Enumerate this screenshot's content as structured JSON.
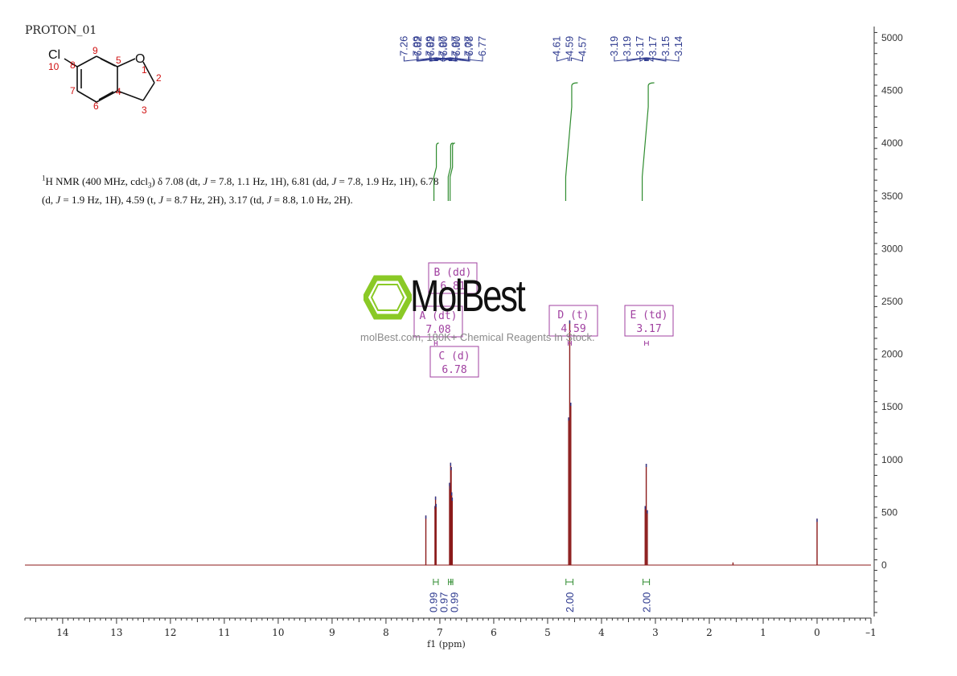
{
  "header": {
    "title": "PROTON_01"
  },
  "molecule": {
    "atoms": {
      "cl": "Cl",
      "o": "O"
    },
    "locants": [
      "10",
      "8",
      "9",
      "5",
      "1",
      "2",
      "7",
      "6",
      "4",
      "3"
    ]
  },
  "description": {
    "line1_parts": [
      "1",
      "H NMR (400 MHz, cdcl",
      "3",
      ") δ 7.08 (dt, ",
      "J",
      " = 7.8, 1.1 Hz, 1H), 6.81 (dd, ",
      "J",
      " = 7.8, 1.9 Hz, 1H), 6.78"
    ],
    "line2_parts": [
      "(d, ",
      "J",
      " = 1.9 Hz, 1H), 4.59 (t, ",
      "J",
      " = 8.7 Hz, 2H), 3.17 (td, ",
      "J",
      " = 8.8, 1.0 Hz, 2H)."
    ]
  },
  "watermark": {
    "brand": "MolBest",
    "tagline": "molBest.com, 180K+ Chemical Reagents In Stock."
  },
  "chart_data": {
    "type": "line",
    "xlabel": "f1 (ppm)",
    "xlim": [
      14.7,
      -1
    ],
    "x_reversed": true,
    "x_ticks": [
      14,
      13,
      12,
      11,
      10,
      9,
      8,
      7,
      6,
      5,
      4,
      3,
      2,
      1,
      0,
      -1
    ],
    "x_tick_labels": [
      "14",
      "13",
      "12",
      "11",
      "10",
      "9",
      "8",
      "7",
      "6",
      "5",
      "4",
      "3",
      "2",
      "1",
      "0",
      "–1"
    ],
    "ylim": [
      -500,
      5100
    ],
    "y_ticks": [
      0,
      500,
      1000,
      1500,
      2000,
      2500,
      3000,
      3500,
      4000,
      4500,
      5000
    ],
    "y_tick_labels": [
      "0",
      "500",
      "1000",
      "1500",
      "2000",
      "2500",
      "3000",
      "3500",
      "4000",
      "4500",
      "5000"
    ],
    "y_axis_side": "right",
    "grid": false,
    "colors": {
      "spectrum": "#8b1a1a",
      "peak_labels": "#2e3a8f",
      "integral": "#2e8b2e",
      "multiplet": "#a040a0",
      "axis": "#333333"
    },
    "peaks": [
      {
        "ppm": 7.26,
        "height": 470
      },
      {
        "ppm": 7.09,
        "height": 560
      },
      {
        "ppm": 7.08,
        "height": 650
      },
      {
        "ppm": 7.07,
        "height": 580
      },
      {
        "ppm": 6.82,
        "height": 780
      },
      {
        "ppm": 6.81,
        "height": 750
      },
      {
        "ppm": 6.8,
        "height": 970
      },
      {
        "ppm": 6.79,
        "height": 930
      },
      {
        "ppm": 6.78,
        "height": 690
      },
      {
        "ppm": 6.77,
        "height": 640
      },
      {
        "ppm": 4.61,
        "height": 1400
      },
      {
        "ppm": 4.59,
        "height": 2320
      },
      {
        "ppm": 4.57,
        "height": 1540
      },
      {
        "ppm": 3.19,
        "height": 560
      },
      {
        "ppm": 3.17,
        "height": 960
      },
      {
        "ppm": 3.15,
        "height": 520
      },
      {
        "ppm": 1.56,
        "height": 25
      },
      {
        "ppm": 0.0,
        "height": 440
      }
    ],
    "peak_labels": {
      "groups": [
        {
          "positions": [
            7.095,
            7.04
          ],
          "labels": [
            "7.26",
            "7.09",
            "7.09",
            "7.07",
            "7.07",
            "7.07"
          ]
        },
        {
          "positions": [
            6.83,
            6.78
          ],
          "labels": [
            "6.82",
            "6.82",
            "6.80",
            "6.80",
            "6.78",
            "6.77"
          ]
        },
        {
          "positions": [
            4.62,
            4.56
          ],
          "labels": [
            "4.61",
            "4.59",
            "4.57"
          ]
        },
        {
          "positions": [
            3.2,
            3.13
          ],
          "labels": [
            "3.19",
            "3.19",
            "3.17",
            "3.17",
            "3.15",
            "3.14"
          ]
        }
      ]
    },
    "multiplets": [
      {
        "letter": "A",
        "type": "dt",
        "label": "A (dt)",
        "shift": "7.08"
      },
      {
        "letter": "B",
        "type": "dd",
        "label": "B (dd)",
        "shift": "6.81"
      },
      {
        "letter": "C",
        "type": "d",
        "label": "C (d)",
        "shift": "6.78"
      },
      {
        "letter": "D",
        "type": "t",
        "label": "D (t)",
        "shift": "4.59"
      },
      {
        "letter": "E",
        "type": "td",
        "label": "E (td)",
        "shift": "3.17"
      }
    ],
    "integrals": [
      {
        "from": 7.12,
        "to": 7.03,
        "value": 0.99,
        "label": "0.99"
      },
      {
        "from": 6.84,
        "to": 6.795,
        "value": 0.97,
        "label": "0.97"
      },
      {
        "from": 6.795,
        "to": 6.76,
        "value": 0.99,
        "label": "0.99"
      },
      {
        "from": 4.66,
        "to": 4.53,
        "value": 2.0,
        "label": "2.00"
      },
      {
        "from": 3.23,
        "to": 3.11,
        "value": 2.0,
        "label": "2.00"
      }
    ]
  }
}
